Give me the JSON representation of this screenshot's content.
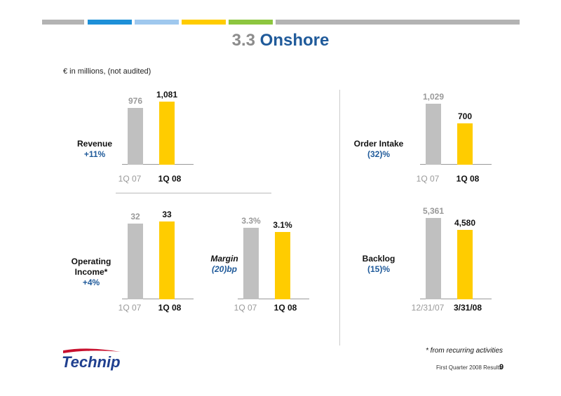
{
  "colors": {
    "stripes": [
      "#b3b3b3",
      "#1e90d8",
      "#9fc8ee",
      "#ffcc00",
      "#8dc63f",
      "#b3b3b3"
    ],
    "prior_bar": "#c0c0c0",
    "current_bar": "#ffcc00",
    "accent_blue": "#1f5a9a"
  },
  "header": {
    "title_number": "3.3",
    "title_word": "Onshore"
  },
  "subtitle": "€ in millions, (not audited)",
  "metrics": {
    "revenue": {
      "name": "Revenue",
      "change": "+11%"
    },
    "order_intake": {
      "name": "Order Intake",
      "change": "(32)%"
    },
    "operating_income": {
      "name_line1": "Operating",
      "name_line2": "Income*",
      "change": "+4%"
    },
    "margin": {
      "name": "Margin",
      "change": "(20)bp"
    },
    "backlog": {
      "name": "Backlog",
      "change": "(15)%"
    }
  },
  "chart_data": [
    {
      "type": "bar",
      "id": "revenue",
      "categories": [
        "1Q 07",
        "1Q 08"
      ],
      "values": [
        976,
        1081
      ],
      "labels": [
        "976",
        "1,081"
      ]
    },
    {
      "type": "bar",
      "id": "order_intake",
      "categories": [
        "1Q 07",
        "1Q 08"
      ],
      "values": [
        1029,
        700
      ],
      "labels": [
        "1,029",
        "700"
      ]
    },
    {
      "type": "bar",
      "id": "operating_income",
      "categories": [
        "1Q 07",
        "1Q 08"
      ],
      "values": [
        32,
        33
      ],
      "labels": [
        "32",
        "33"
      ]
    },
    {
      "type": "bar",
      "id": "margin",
      "categories": [
        "1Q 07",
        "1Q 08"
      ],
      "values": [
        3.3,
        3.1
      ],
      "labels": [
        "3.3%",
        "3.1%"
      ]
    },
    {
      "type": "bar",
      "id": "backlog",
      "categories": [
        "12/31/07",
        "3/31/08"
      ],
      "values": [
        5361,
        4580
      ],
      "labels": [
        "5,361",
        "4,580"
      ]
    }
  ],
  "footnote": "* from recurring activities",
  "footer": {
    "text": "First Quarter 2008 Results",
    "page": "9"
  },
  "logo": {
    "text": "Technip"
  }
}
